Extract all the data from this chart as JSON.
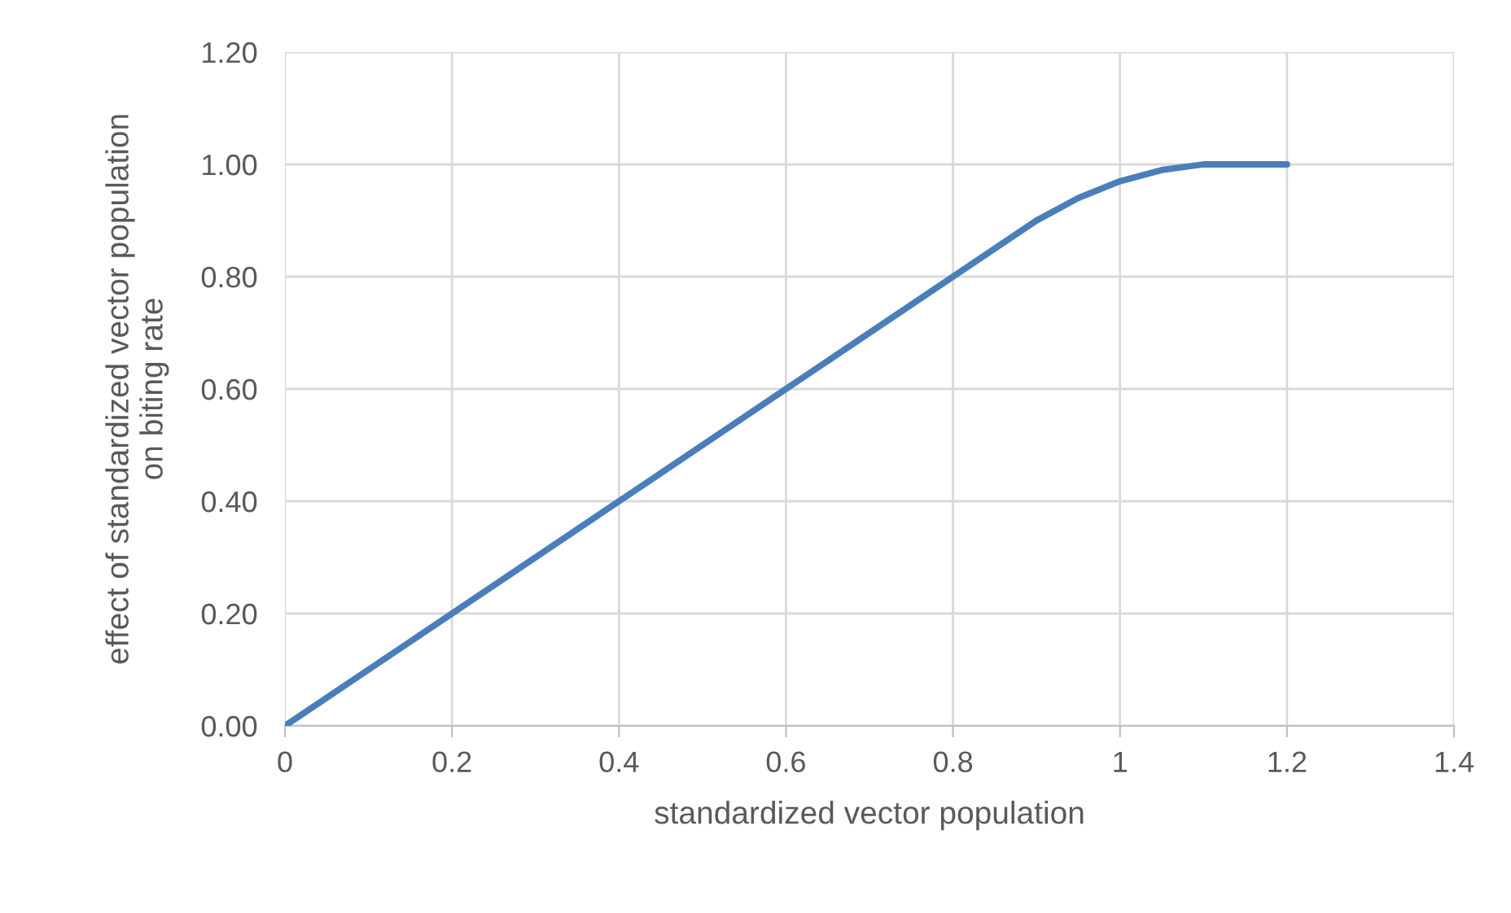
{
  "chart_data": {
    "type": "line",
    "xlabel": "standardized vector population",
    "ylabel": "effect of standardized vector population\non biting rate",
    "series": [
      {
        "color": "#4a7ebb",
        "x": [
          0,
          0.2,
          0.4,
          0.6,
          0.8,
          0.85,
          0.9,
          0.95,
          1.0,
          1.05,
          1.1,
          1.15,
          1.2
        ],
        "values": [
          0,
          0.2,
          0.4,
          0.6,
          0.8,
          0.85,
          0.9,
          0.94,
          0.97,
          0.99,
          1.0,
          1.0,
          1.0
        ]
      }
    ],
    "xlim": [
      0,
      1.4
    ],
    "xticks": [
      0,
      0.2,
      0.4,
      0.6,
      0.8,
      1,
      1.2,
      1.4
    ],
    "ylim": [
      0,
      1.2
    ],
    "yticks": [
      {
        "value": 0,
        "label": "0.00"
      },
      {
        "value": 0.2,
        "label": "0.20"
      },
      {
        "value": 0.4,
        "label": "0.40"
      },
      {
        "value": 0.6,
        "label": "0.60"
      },
      {
        "value": 0.8,
        "label": "0.80"
      },
      {
        "value": 1.0,
        "label": "1.00"
      },
      {
        "value": 1.2,
        "label": "1.20"
      }
    ],
    "grid": true,
    "marker": "none",
    "line_style": "solid"
  }
}
